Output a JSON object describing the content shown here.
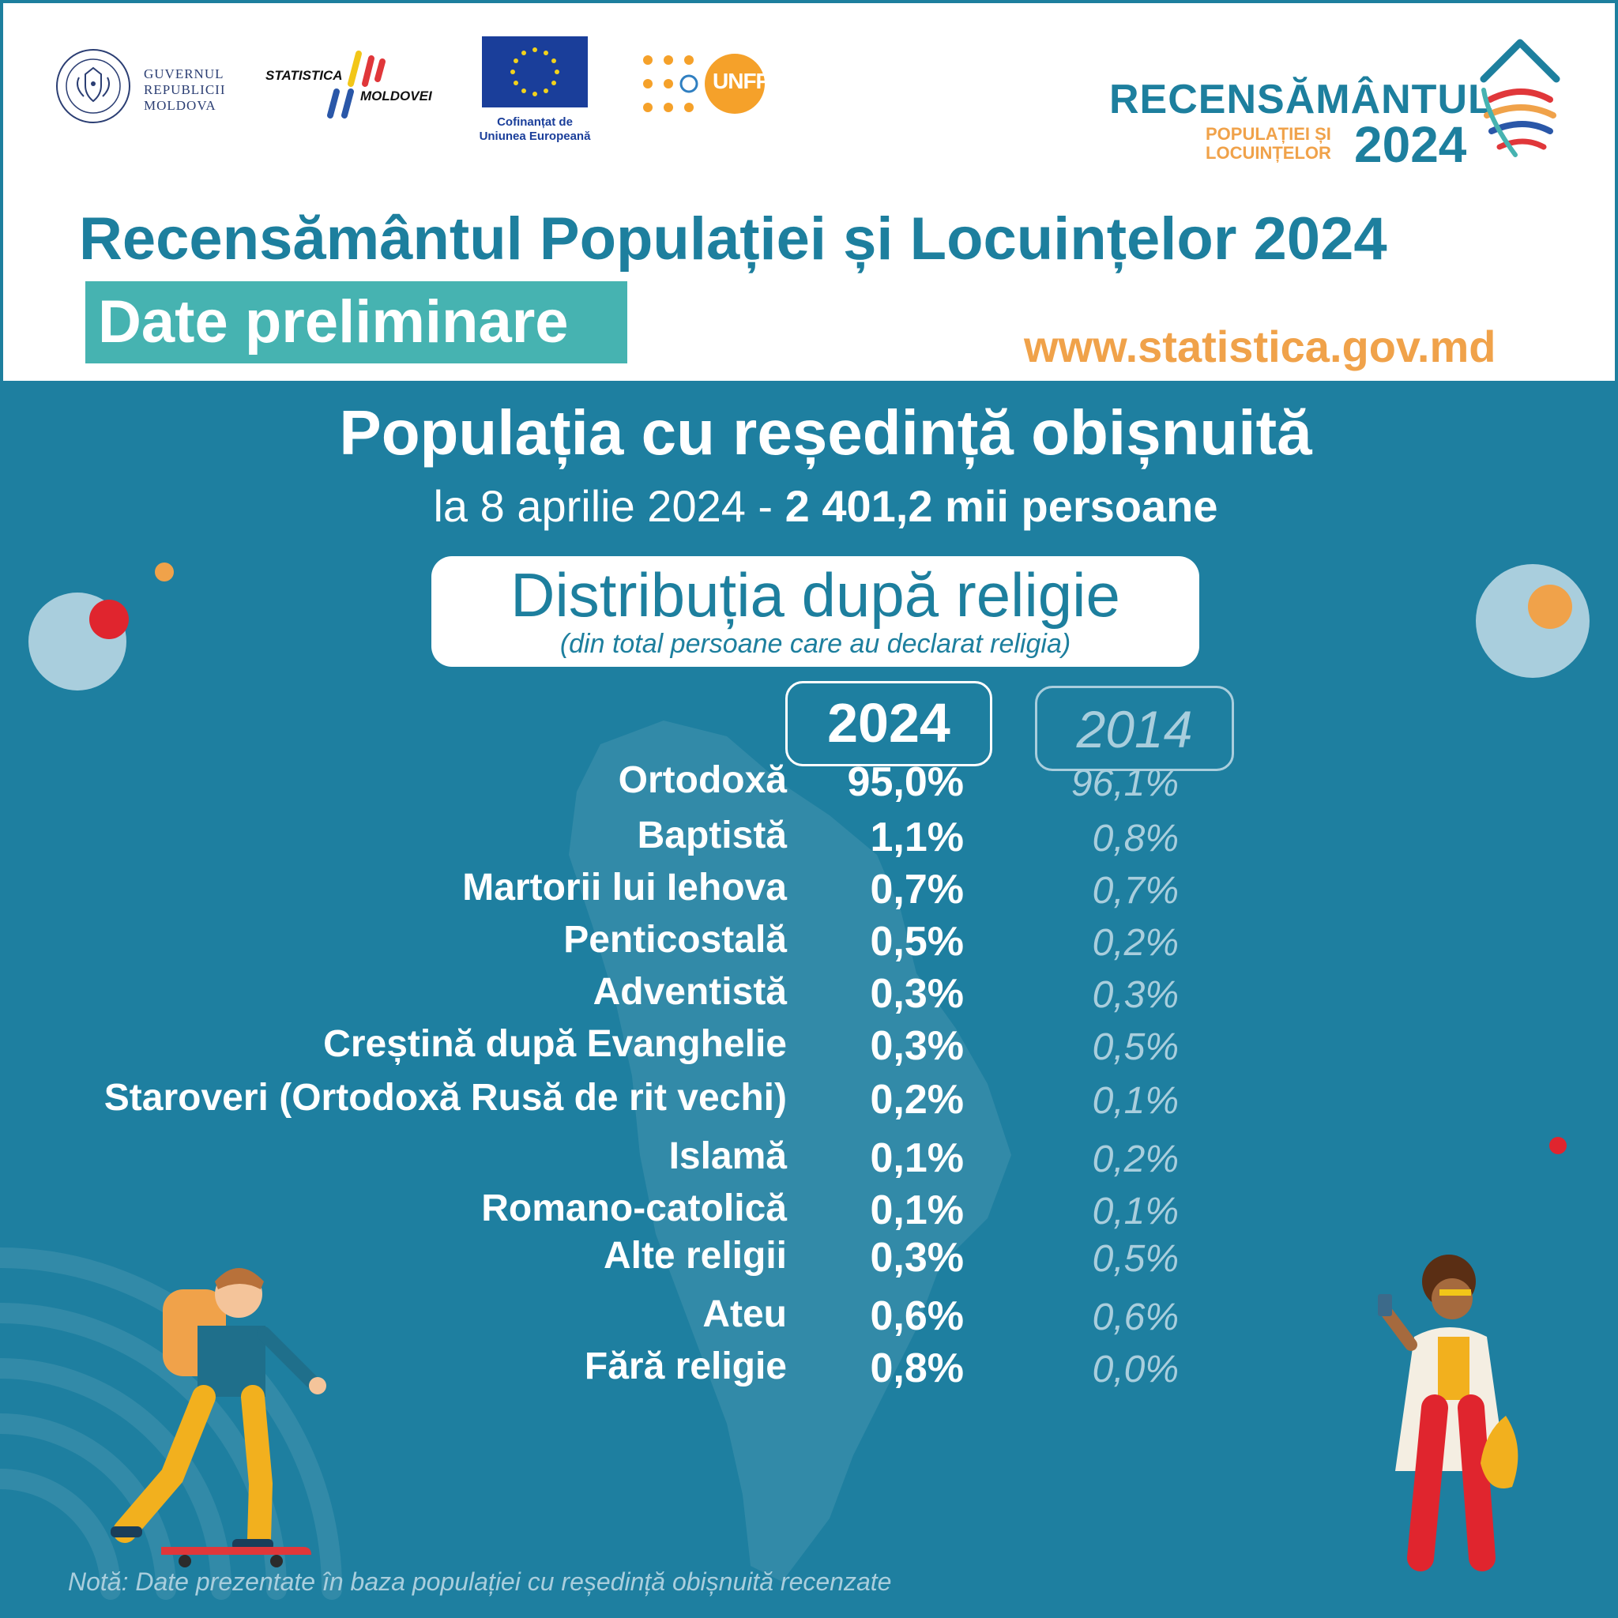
{
  "header": {
    "gov_logo_lines": [
      "GUVERNUL",
      "REPUBLICII",
      "MOLDOVA"
    ],
    "gov_seal_text": "GUVERNUL REPUBLICII MOLDOVA",
    "stat_logo_lines": [
      "STATISTICA",
      "MOLDOVEI"
    ],
    "eu_caption_lines": [
      "Cofinanțat de",
      "Uniunea Europeană"
    ],
    "unfpa_label": "UNFPA",
    "brand_title": "RECENSĂMÂNTUL",
    "brand_subtitle_lines": [
      "POPULAȚIEI ȘI",
      "LOCUINȚELOR"
    ],
    "brand_year": "2024",
    "main_title": "Recensământul Populației și Locuințelor 2024",
    "badge": "Date preliminare",
    "website": "www.statistica.gov.md"
  },
  "main": {
    "section_title": "Populația cu reședință obișnuită",
    "subtitle_prefix": "la 8 aprilie 2024 - ",
    "subtitle_value": "2 401,2 mii persoane",
    "dist_title": "Distribuția după religie",
    "dist_note": "(din total persoane care au declarat religia)",
    "footnote": "Notă: Date prezentate în baza populației cu reședință obișnuită recenzate"
  },
  "colors": {
    "background": "#1e7fa0",
    "primary_text": "#1d7f9e",
    "accent_orange": "#f0a24a",
    "badge_teal": "#46b3b1",
    "muted_2014": "#a9cedd",
    "white": "#ffffff"
  },
  "chart_data": {
    "type": "table",
    "title": "Distribuția după religie",
    "subtitle": "(din total persoane care au declarat religia)",
    "unit": "%",
    "columns": [
      "2024",
      "2014"
    ],
    "categories": [
      "Ortodoxă",
      "Baptistă",
      "Martorii lui Iehova",
      "Penticostală",
      "Adventistă",
      "Creștină după Evanghelie",
      "Staroveri (Ortodoxă Rusă de rit vechi)",
      "Islamă",
      "Romano-catolică",
      "Alte religii",
      "Ateu",
      "Fără religie"
    ],
    "series": [
      {
        "name": "2024",
        "values": [
          95.0,
          1.1,
          0.7,
          0.5,
          0.3,
          0.3,
          0.2,
          0.1,
          0.1,
          0.3,
          0.6,
          0.8
        ],
        "labels": [
          "95,0%",
          "1,1%",
          "0,7%",
          "0,5%",
          "0,3%",
          "0,3%",
          "0,2%",
          "0,1%",
          "0,1%",
          "0,3%",
          "0,6%",
          "0,8%"
        ]
      },
      {
        "name": "2014",
        "values": [
          96.1,
          0.8,
          0.7,
          0.2,
          0.3,
          0.5,
          0.1,
          0.2,
          0.1,
          0.5,
          0.6,
          0.0
        ],
        "labels": [
          "96,1%",
          "0,8%",
          "0,7%",
          "0,2%",
          "0,3%",
          "0,5%",
          "0,1%",
          "0,2%",
          "0,1%",
          "0,5%",
          "0,6%",
          "0,0%"
        ]
      }
    ]
  }
}
